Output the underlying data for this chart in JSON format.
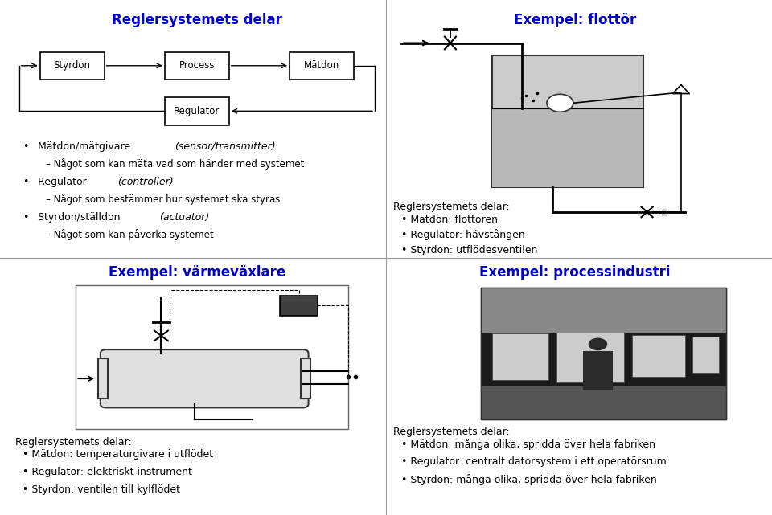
{
  "bg_color": "#ffffff",
  "title_color": "#0000cc",
  "title_fontsize": 12,
  "body_fontsize": 9,
  "label_fontsize": 9,
  "panel_titles": [
    "Reglersystemets delar",
    "Exempel: flottör",
    "Exempel: värmeväxlare",
    "Exempel: processindustri"
  ],
  "top_right_label": "Reglersystemets delar:",
  "top_right_bullets": [
    "Mätdon: flottören",
    "Regulator: hävstången",
    "Styrdon: utflödesventilen"
  ],
  "bottom_left_label": "Reglersystemets delar:",
  "bottom_left_bullets": [
    "Mätdon: temperaturgivare i utflödet",
    "Regulator: elektriskt instrument",
    "Styrdon: ventilen till kylflödet"
  ],
  "bottom_right_label": "Reglersystemets delar:",
  "bottom_right_bullets": [
    "Mätdon: många olika, spridda över hela fabriken",
    "Regulator: centralt datorsystem i ett operatörsrum",
    "Styrdon: många olika, spridda över hela fabriken"
  ],
  "box_labels": [
    "Styrdon",
    "Process",
    "Mätdon",
    "Regulator"
  ],
  "divider_color": "#999999",
  "text_color": "#000000"
}
